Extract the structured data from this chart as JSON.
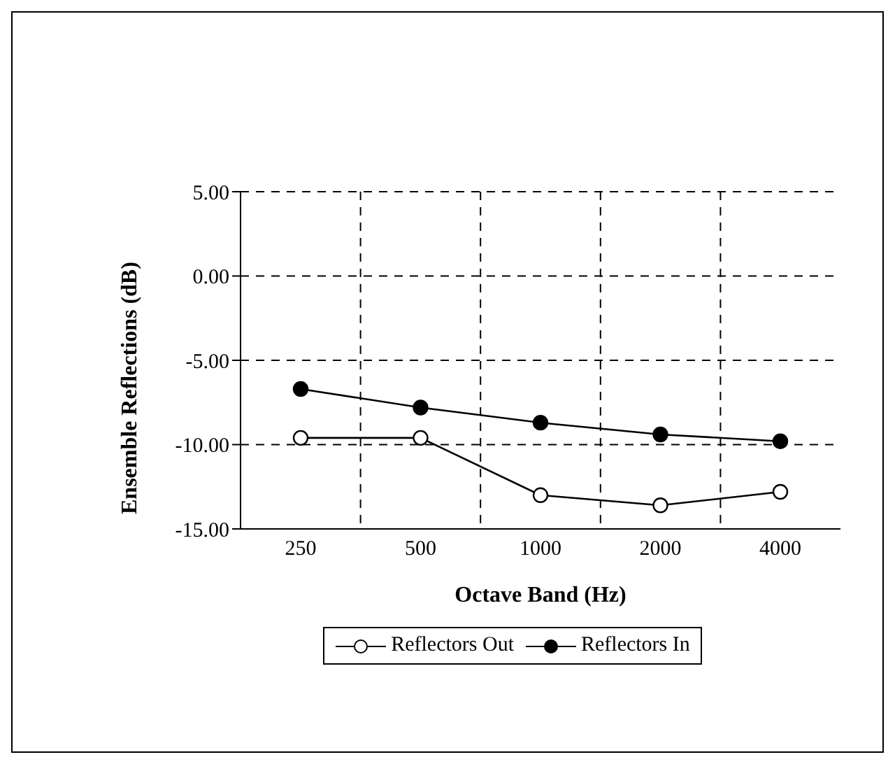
{
  "chart_data": {
    "type": "line",
    "xlabel": "Octave Band (Hz)",
    "ylabel": "Ensemble Reflections (dB)",
    "categories": [
      "250",
      "500",
      "1000",
      "2000",
      "4000"
    ],
    "series": [
      {
        "name": "Reflectors Out",
        "color": "#000000",
        "values": [
          -9.6,
          -9.6,
          -13.0,
          -13.6,
          -12.8
        ]
      },
      {
        "name": "Reflectors In",
        "color": "#000000",
        "values": [
          -6.7,
          -7.8,
          -8.7,
          -9.4,
          -9.8
        ]
      }
    ],
    "ylim": [
      -15,
      5
    ],
    "yticks": [
      {
        "value": -15,
        "label": "-15.00"
      },
      {
        "value": -10,
        "label": "-10.00"
      },
      {
        "value": -5,
        "label": "-5.00"
      },
      {
        "value": 0,
        "label": "0.00"
      },
      {
        "value": 5,
        "label": "5.00"
      }
    ],
    "grid": true,
    "legend": "bottom",
    "line_style": "solid",
    "marker": "circle"
  }
}
